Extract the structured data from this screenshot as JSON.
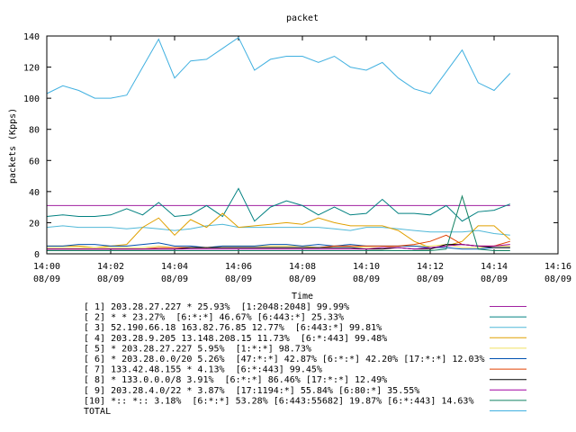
{
  "chart_data": {
    "type": "line",
    "title": "packet",
    "xlabel": "Time",
    "ylabel": "packets (Kpps)",
    "ylim": [
      0,
      140
    ],
    "yticks": [
      0,
      20,
      40,
      60,
      80,
      100,
      120,
      140
    ],
    "xlim": [
      "14:00",
      "14:16"
    ],
    "xtick_times": [
      "14:00",
      "14:02",
      "14:04",
      "14:06",
      "14:08",
      "14:10",
      "14:12",
      "14:14",
      "14:16"
    ],
    "xtick_dates": [
      "08/09",
      "08/09",
      "08/09",
      "08/09",
      "08/09",
      "08/09",
      "08/09",
      "08/09",
      "08/09"
    ],
    "grid": false,
    "legend_placement": "bottom",
    "x": [
      "14:00",
      "14:00:30",
      "14:01",
      "14:01:30",
      "14:02",
      "14:02:30",
      "14:03",
      "14:03:30",
      "14:04",
      "14:04:30",
      "14:05",
      "14:05:30",
      "14:06",
      "14:06:30",
      "14:07",
      "14:07:30",
      "14:08",
      "14:08:30",
      "14:09",
      "14:09:30",
      "14:10",
      "14:10:30",
      "14:11",
      "14:11:30",
      "14:12",
      "14:12:30",
      "14:13",
      "14:13:30",
      "14:14",
      "14:14:30"
    ],
    "series": [
      {
        "name": "[ 1] 203.28.27.227 * 25.93%  [1:2048:2048] 99.99%",
        "color": "#a020a0",
        "values": [
          31,
          31,
          31,
          31,
          31,
          31,
          31,
          31,
          31,
          31,
          31,
          31,
          31,
          31,
          31,
          31,
          31,
          31,
          31,
          31,
          31,
          31,
          31,
          31,
          31,
          31,
          31,
          31,
          31,
          31
        ]
      },
      {
        "name": "[ 2] * * 23.27%  [6:*:*] 46.67% [6:443:*] 25.33%",
        "color": "#008080",
        "values": [
          24,
          25,
          24,
          24,
          25,
          29,
          25,
          33,
          24,
          25,
          31,
          24,
          42,
          21,
          30,
          34,
          31,
          25,
          30,
          25,
          26,
          35,
          26,
          26,
          25,
          31,
          21,
          27,
          28,
          32
        ]
      },
      {
        "name": "[ 3] 52.190.66.18 163.82.76.85 12.77%  [6:443:*] 99.81%",
        "color": "#50b8d8",
        "values": [
          17,
          18,
          17,
          17,
          17,
          16,
          17,
          16,
          15,
          16,
          18,
          19,
          17,
          17,
          17,
          17,
          17,
          17,
          16,
          15,
          17,
          17,
          16,
          15,
          14,
          14,
          14,
          15,
          13,
          12
        ]
      },
      {
        "name": "[ 4] 203.28.9.205 13.148.208.15 11.73%  [6:*:443] 99.48%",
        "color": "#e0a000",
        "values": [
          5,
          5,
          5,
          4,
          5,
          6,
          17,
          23,
          12,
          22,
          17,
          26,
          17,
          18,
          19,
          20,
          19,
          23,
          20,
          18,
          18,
          18,
          15,
          8,
          4,
          5,
          8,
          18,
          18,
          9
        ]
      },
      {
        "name": "[ 5] * 203.28.27.227 5.95%  [1:*:*] 98.73%",
        "color": "#f0e060",
        "values": [
          4,
          4,
          4,
          4,
          4,
          4,
          4,
          5,
          4,
          4,
          4,
          5,
          5,
          5,
          5,
          5,
          5,
          4,
          5,
          5,
          4,
          4,
          5,
          5,
          5,
          6,
          4,
          4,
          5,
          5
        ]
      },
      {
        "name": "[ 6] * 203.28.0.0/20 5.26%  [47:*:*] 42.87% [6:*:*] 42.20% [17:*:*] 12.03%",
        "color": "#0050b0",
        "values": [
          5,
          5,
          6,
          6,
          5,
          5,
          6,
          7,
          5,
          5,
          4,
          5,
          5,
          5,
          6,
          6,
          5,
          6,
          5,
          6,
          5,
          5,
          5,
          5,
          4,
          4,
          3,
          3,
          4,
          4
        ]
      },
      {
        "name": "[ 7] 133.42.48.155 * 4.13%  [6:*:443] 99.45%",
        "color": "#e04000",
        "values": [
          3,
          3,
          3,
          3,
          3,
          3,
          3,
          4,
          4,
          4,
          4,
          4,
          4,
          4,
          4,
          4,
          4,
          4,
          5,
          5,
          5,
          5,
          5,
          6,
          8,
          12,
          6,
          5,
          5,
          8
        ]
      },
      {
        "name": "[ 8] * 133.0.0.0/8 3.91%  [6:*:*] 86.46% [17:*:*] 12.49%",
        "color": "#000000",
        "values": [
          3,
          3,
          3,
          3,
          3,
          3,
          3,
          3,
          3,
          4,
          4,
          4,
          4,
          4,
          4,
          4,
          4,
          4,
          4,
          4,
          3,
          3,
          4,
          3,
          3,
          6,
          6,
          5,
          4,
          4
        ]
      },
      {
        "name": "[ 9] 203.28.4.0/22 * 3.87%  [17:1194:*] 55.84% [6:80:*] 35.55%",
        "color": "#a000a0",
        "values": [
          3,
          3,
          3,
          3,
          3,
          3,
          3,
          3,
          3,
          3,
          3,
          3,
          3,
          3,
          3,
          3,
          3,
          3,
          3,
          3,
          3,
          4,
          4,
          3,
          4,
          5,
          6,
          5,
          5,
          6
        ]
      },
      {
        "name": "[10] *:: *:: 3.18%  [6:*:*] 53.28% [6:443:55682] 19.87% [6:*:443] 14.63%",
        "color": "#108060",
        "values": [
          2,
          2,
          2,
          2,
          2,
          2,
          2,
          2,
          2,
          2,
          2,
          2,
          2,
          2,
          2,
          2,
          2,
          2,
          2,
          2,
          2,
          2,
          2,
          2,
          2,
          3,
          37,
          3,
          2,
          2
        ]
      },
      {
        "name": "TOTAL",
        "color": "#40b0e0",
        "values": [
          103,
          108,
          105,
          100,
          100,
          102,
          120,
          138,
          113,
          124,
          125,
          132,
          139,
          118,
          125,
          127,
          127,
          123,
          127,
          120,
          118,
          123,
          113,
          106,
          103,
          117,
          131,
          110,
          105,
          116
        ]
      }
    ]
  }
}
